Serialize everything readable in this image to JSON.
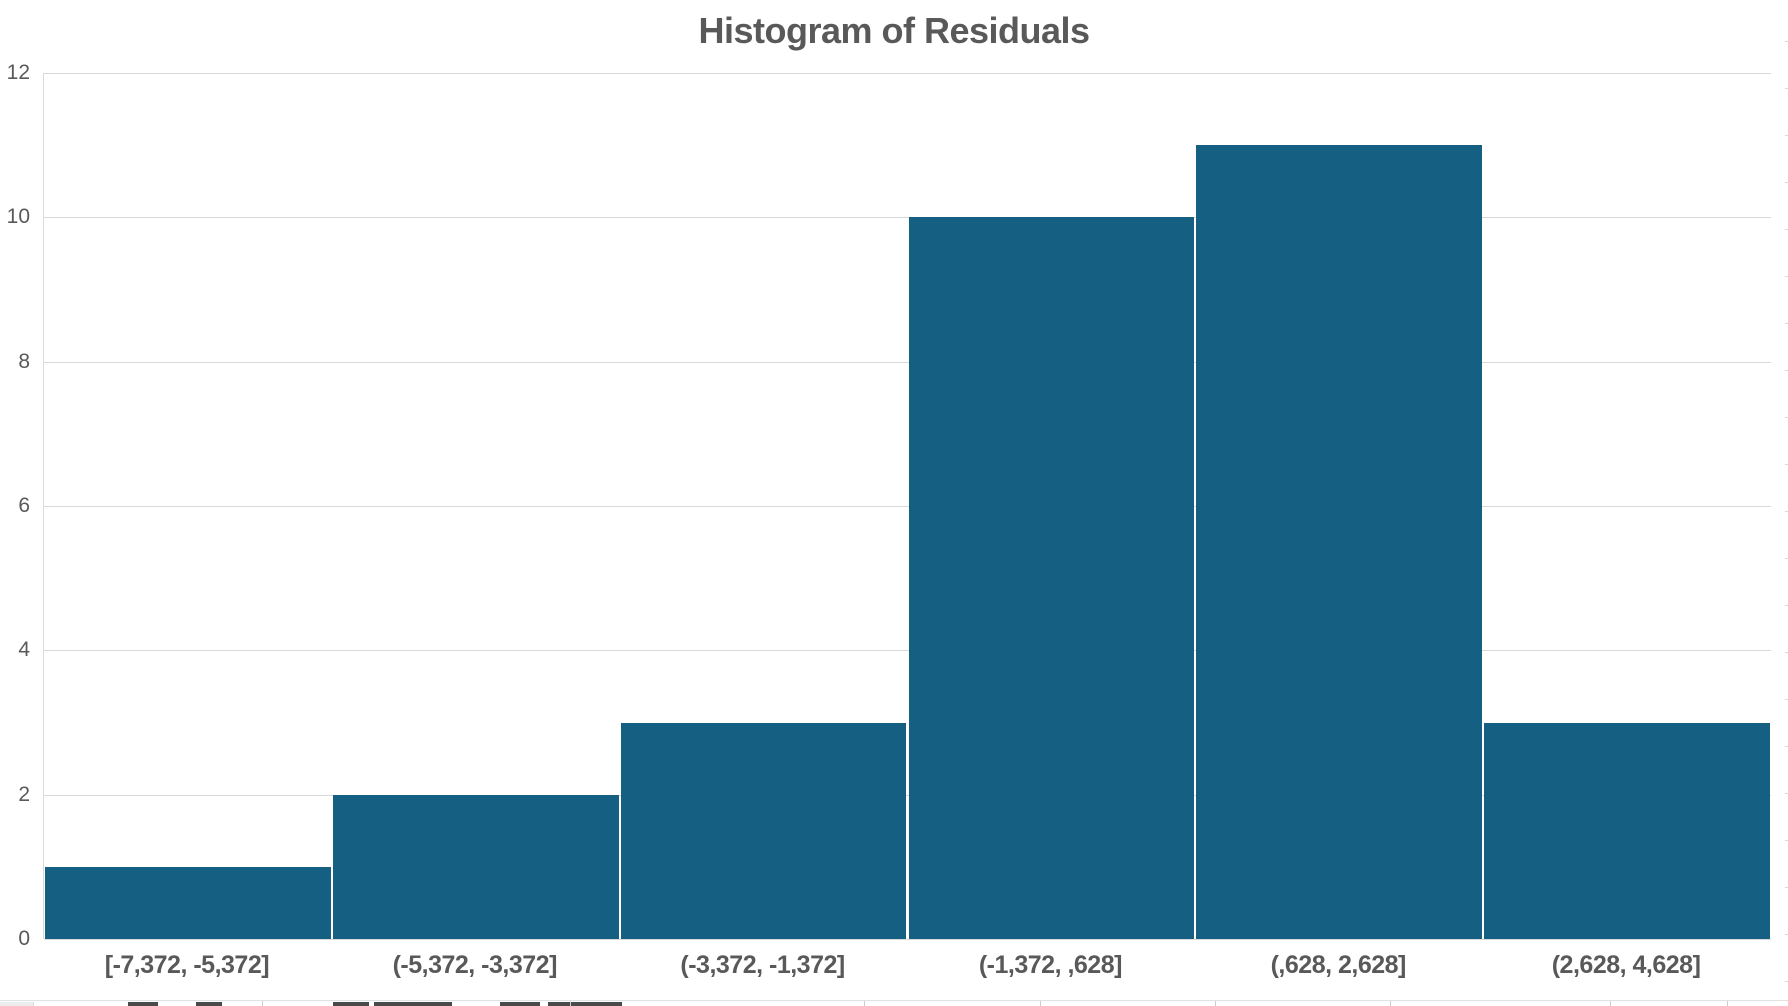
{
  "chart_data": {
    "type": "bar",
    "subtype": "histogram",
    "title": "Histogram of Residuals",
    "categories": [
      "[-7,372, -5,372]",
      "(-5,372, -3,372]",
      "(-3,372, -1,372]",
      "(-1,372, ,628]",
      "(,628, 2,628]",
      "(2,628, 4,628]"
    ],
    "values": [
      1,
      2,
      3,
      10,
      11,
      3
    ],
    "xlabel": "",
    "ylabel": "",
    "ylim": [
      0,
      12
    ],
    "yticks": [
      0,
      2,
      4,
      6,
      8,
      10,
      12
    ],
    "grid": true,
    "legend_position": "none",
    "colors": {
      "bar_fill": "#156082",
      "gridline": "#d9d9d9",
      "axis_line": "#d9d9d9",
      "text": "#595959",
      "background": "#ffffff"
    }
  }
}
